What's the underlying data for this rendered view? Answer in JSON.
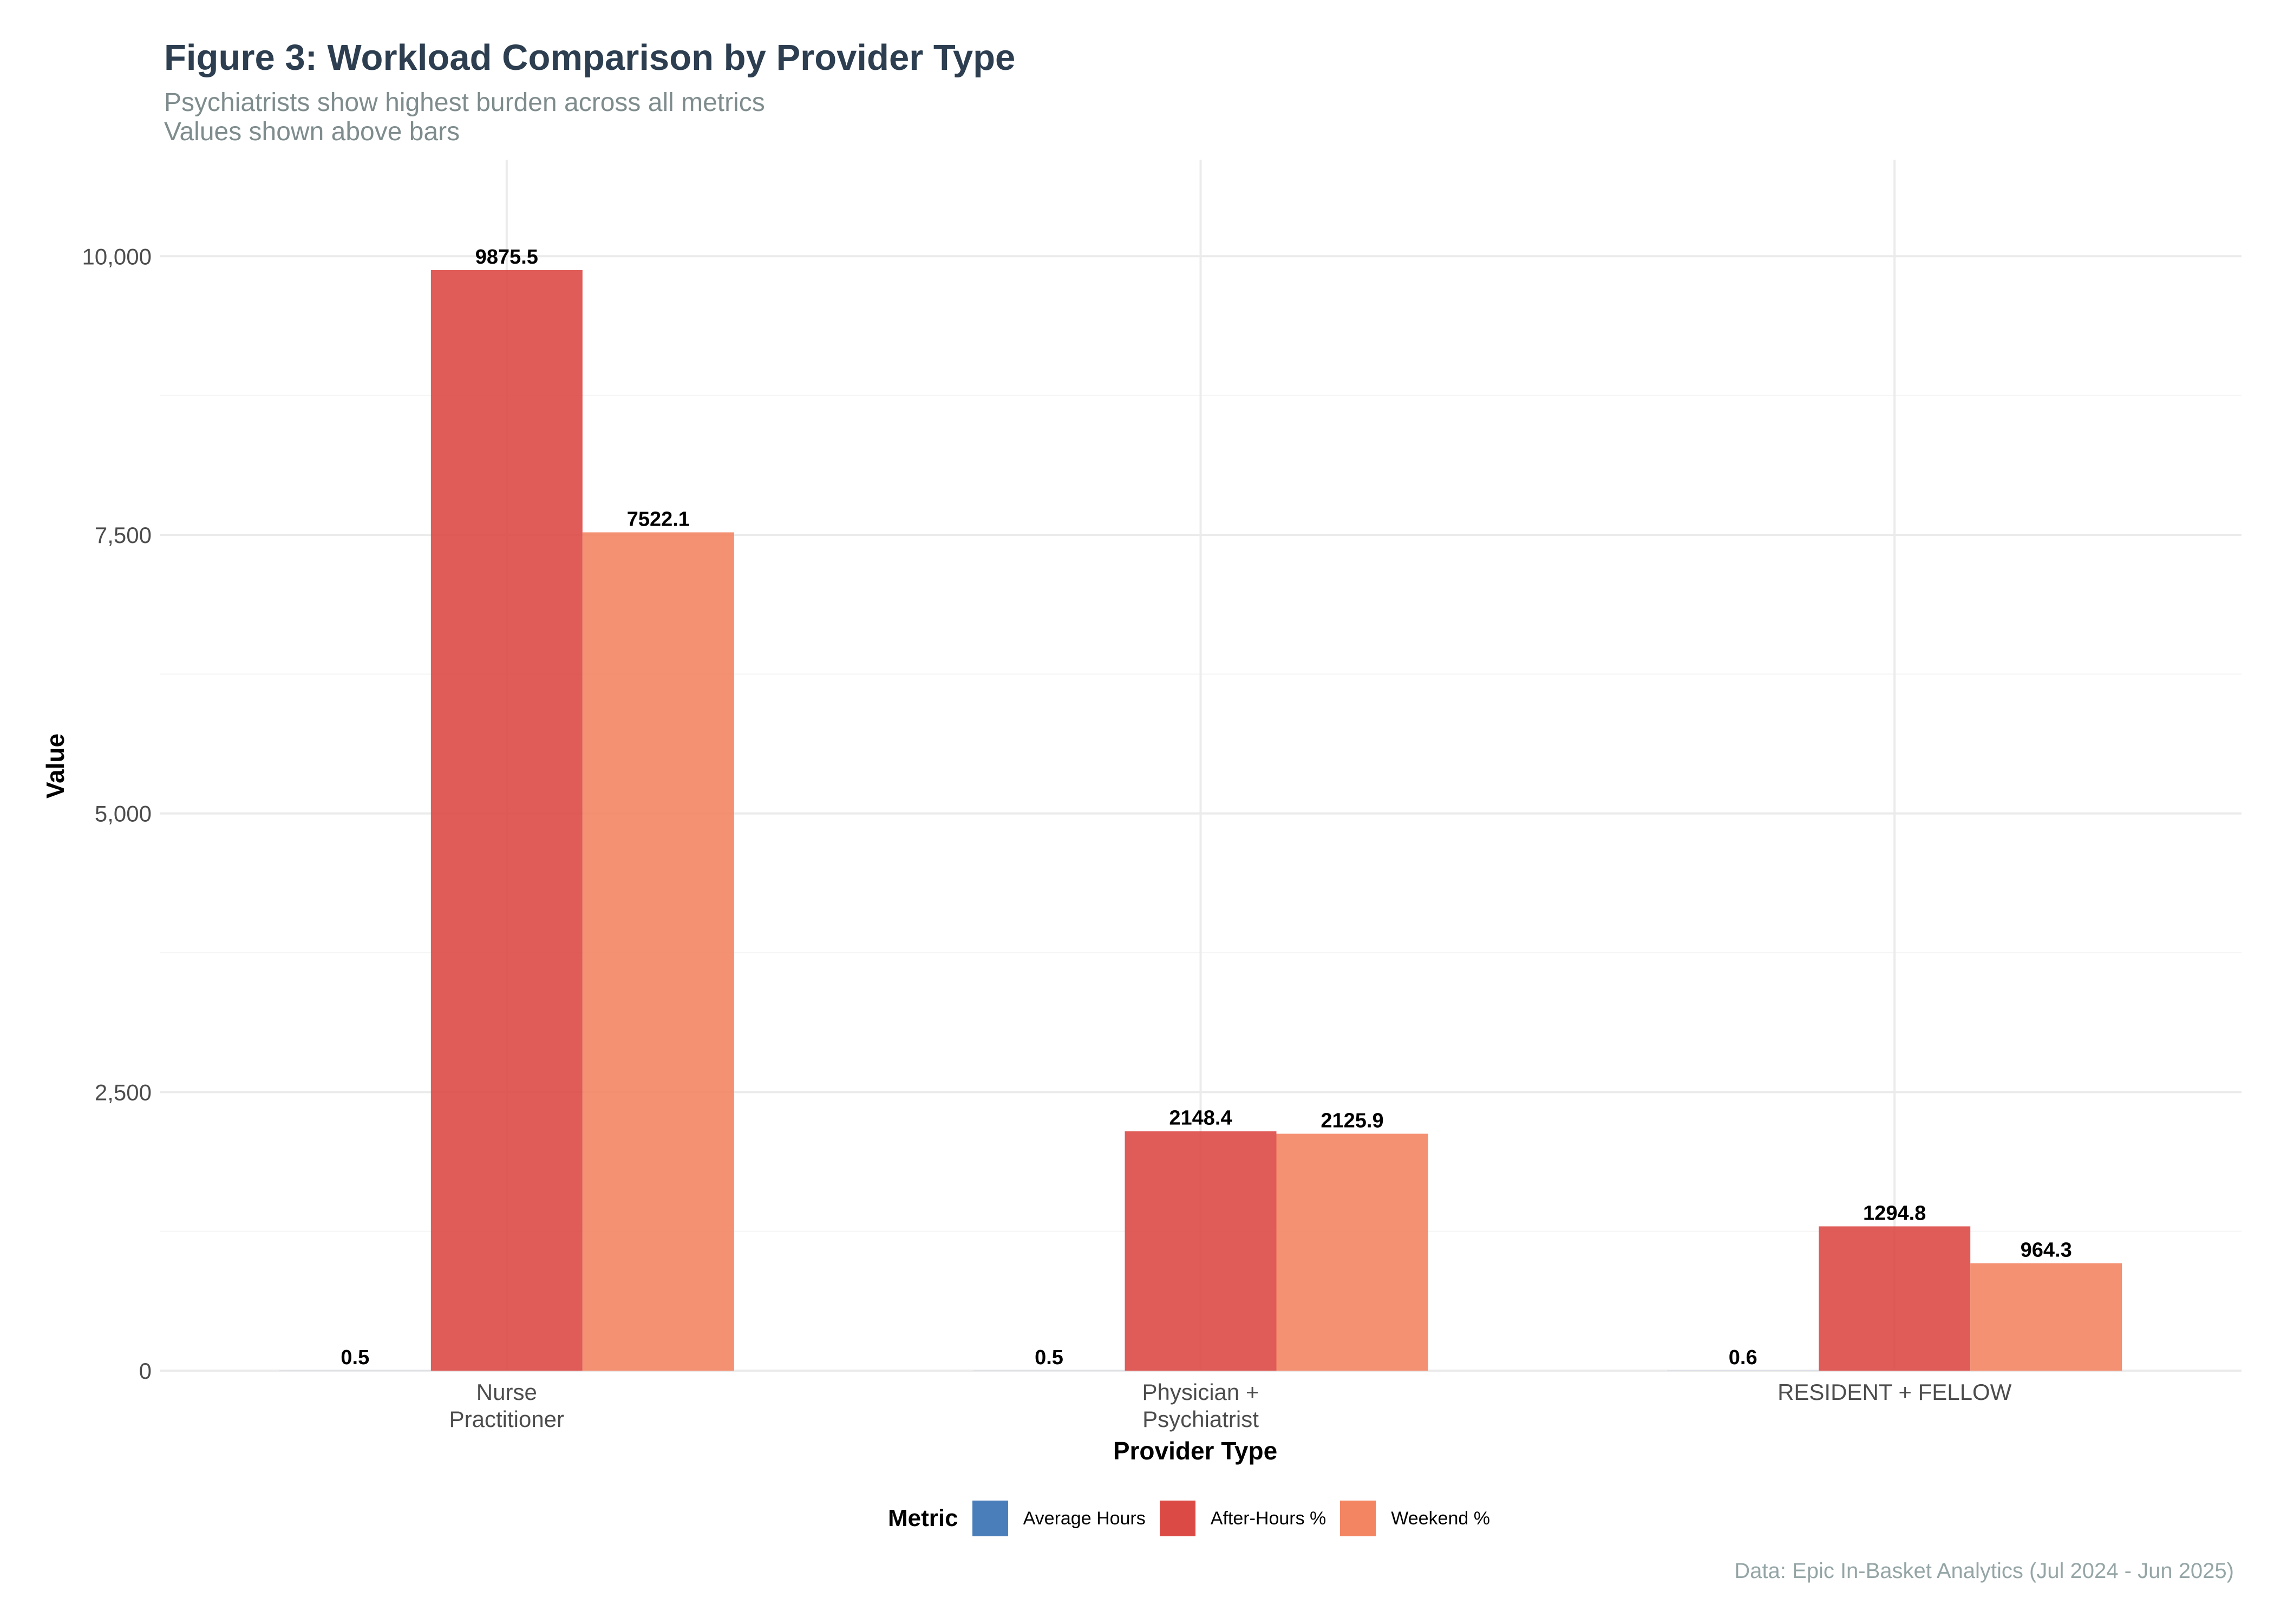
{
  "title": "Figure 3: Workload Comparison by Provider Type",
  "subtitle_lines": [
    "Psychiatrists show highest burden across all metrics",
    "Values shown above bars"
  ],
  "caption": "Data: Epic In-Basket Analytics (Jul 2024 - Jun 2025)",
  "legend": {
    "title": "Metric",
    "items": [
      {
        "label": "Average Hours",
        "color": "#4a7ebb"
      },
      {
        "label": "After-Hours %",
        "color": "#dc4a46"
      },
      {
        "label": "Weekend %",
        "color": "#f38563"
      }
    ]
  },
  "chart_data": {
    "type": "bar",
    "title": "Figure 3: Workload Comparison by Provider Type",
    "xlabel": "Provider Type",
    "ylabel": "Value",
    "categories": [
      [
        "Nurse",
        "Practitioner"
      ],
      [
        "Physician +",
        "Psychiatrist"
      ],
      [
        "RESIDENT + FELLOW"
      ]
    ],
    "series": [
      {
        "name": "Average Hours",
        "color": "#4a7ebb",
        "values": [
          0.5,
          0.5,
          0.6
        ],
        "labels": [
          "0.5",
          "0.5",
          "0.6"
        ]
      },
      {
        "name": "After-Hours %",
        "color": "#dc4a46",
        "values": [
          9875.5,
          2148.4,
          1294.8
        ],
        "labels": [
          "9875.5",
          "2148.4",
          "1294.8"
        ]
      },
      {
        "name": "Weekend %",
        "color": "#f38563",
        "values": [
          7522.1,
          2125.9,
          964.3
        ],
        "labels": [
          "7522.1",
          "2125.9",
          "964.3"
        ]
      }
    ],
    "ylim": [
      0,
      10866
    ],
    "yticks": [
      0,
      2500,
      5000,
      7500,
      10000
    ],
    "ytick_labels": [
      "0",
      "2,500",
      "5,000",
      "7,500",
      "10,000"
    ],
    "grid": true,
    "legend_position": "bottom"
  }
}
